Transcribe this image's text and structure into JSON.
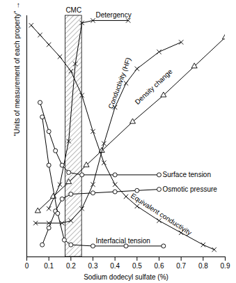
{
  "chart_data": {
    "type": "line",
    "x_label": "Sodium dodecyl sulfate (%)",
    "y_label": "\"Units of measurement of each property\" →",
    "xlim": [
      0,
      0.9
    ],
    "xticks": [
      0,
      0.1,
      0.2,
      0.3,
      0.4,
      0.5,
      0.6,
      0.7,
      0.8,
      0.9
    ],
    "ylim": [
      0,
      100
    ],
    "yticks": [],
    "tick_labels": "x",
    "band": {
      "label": "CMC",
      "x": [
        0.175,
        0.25
      ]
    },
    "series": [
      {
        "name": "Detergency",
        "color": "#000000",
        "marker": "times",
        "x": [
          0.1,
          0.15,
          0.19,
          0.22,
          0.25,
          0.3,
          0.46
        ],
        "values": [
          20,
          30,
          48,
          80,
          97,
          98,
          98
        ]
      },
      {
        "name": "Density change",
        "color": "#000000",
        "marker": "triangle",
        "x": [
          0.05,
          0.12,
          0.19,
          0.27,
          0.34,
          0.48,
          0.62,
          0.76,
          0.9
        ],
        "values": [
          19,
          25,
          31,
          38,
          44,
          56,
          67,
          79,
          91
        ]
      },
      {
        "name": "Conductivity (HF)",
        "color": "#000000",
        "marker": "times",
        "x": [
          0.04,
          0.1,
          0.16,
          0.2,
          0.25,
          0.3,
          0.35,
          0.4,
          0.45,
          0.5,
          0.6,
          0.7
        ],
        "values": [
          14,
          14,
          14,
          15,
          20,
          30,
          47,
          62,
          72,
          78,
          85,
          89
        ]
      },
      {
        "name": "Surface tension",
        "color": "#000000",
        "marker": "circle",
        "x": [
          0.06,
          0.1,
          0.13,
          0.16,
          0.19,
          0.25,
          0.4,
          0.6
        ],
        "values": [
          64,
          52,
          44,
          38,
          35,
          34,
          34,
          34
        ]
      },
      {
        "name": "Osmotic pressure",
        "color": "#000000",
        "marker": "circle",
        "x": [
          0.07,
          0.1,
          0.13,
          0.16,
          0.2,
          0.3,
          0.4,
          0.5,
          0.6
        ],
        "values": [
          5,
          12,
          19,
          24,
          26,
          26.5,
          27,
          27.5,
          28
        ]
      },
      {
        "name": "Equivalent conductivity",
        "color": "#000000",
        "marker": "times",
        "x": [
          0.02,
          0.06,
          0.1,
          0.15,
          0.2,
          0.25,
          0.3,
          0.35,
          0.4,
          0.45,
          0.5,
          0.6,
          0.7,
          0.8,
          0.85
        ],
        "values": [
          96,
          92,
          88,
          83,
          77,
          67,
          52,
          39,
          30,
          25,
          21,
          15,
          10,
          5,
          3
        ]
      },
      {
        "name": "Interfacial tension",
        "color": "#000000",
        "marker": "circle",
        "x": [
          0.07,
          0.1,
          0.14,
          0.17,
          0.2,
          0.3,
          0.45,
          0.62
        ],
        "values": [
          58,
          38,
          18,
          7,
          5,
          4.5,
          4.5,
          4.5
        ]
      }
    ]
  }
}
